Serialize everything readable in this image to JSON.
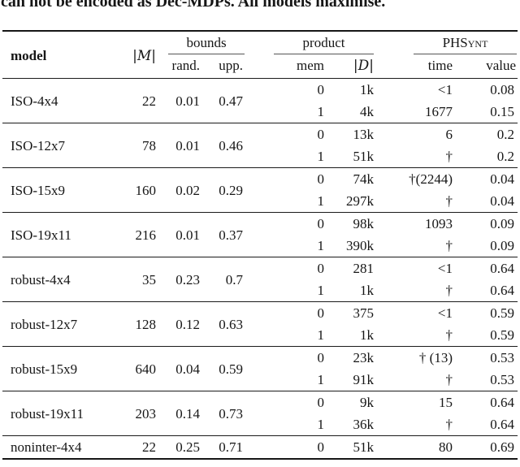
{
  "caption": "can not be encoded as Dec-MDPs. All models maximise.",
  "header": {
    "model": "model",
    "m": "|M|",
    "groups": [
      {
        "label": "bounds",
        "sub": [
          "rand.",
          "upp."
        ]
      },
      {
        "label": "product",
        "sub": [
          "mem",
          "|D|"
        ]
      },
      {
        "label": "PHSynt",
        "sub": [
          "time",
          "value"
        ]
      }
    ]
  },
  "rows": [
    {
      "model": "ISO-4x4",
      "m": "22",
      "rand": "0.01",
      "upp": "0.47",
      "lines": [
        [
          "0",
          "1k",
          "<1",
          "0.08"
        ],
        [
          "1",
          "4k",
          "1677",
          "0.15"
        ]
      ]
    },
    {
      "model": "ISO-12x7",
      "m": "78",
      "rand": "0.01",
      "upp": "0.46",
      "lines": [
        [
          "0",
          "13k",
          "6",
          "0.2"
        ],
        [
          "1",
          "51k",
          "†",
          "0.2"
        ]
      ]
    },
    {
      "model": "ISO-15x9",
      "m": "160",
      "rand": "0.02",
      "upp": "0.29",
      "lines": [
        [
          "0",
          "74k",
          "†(2244)",
          "0.04"
        ],
        [
          "1",
          "297k",
          "†",
          "0.04"
        ]
      ]
    },
    {
      "model": "ISO-19x11",
      "m": "216",
      "rand": "0.01",
      "upp": "0.37",
      "lines": [
        [
          "0",
          "98k",
          "1093",
          "0.09"
        ],
        [
          "1",
          "390k",
          "†",
          "0.09"
        ]
      ]
    },
    {
      "model": "robust-4x4",
      "m": "35",
      "rand": "0.23",
      "upp": "0.7",
      "lines": [
        [
          "0",
          "281",
          "<1",
          "0.64"
        ],
        [
          "1",
          "1k",
          "†",
          "0.64"
        ]
      ]
    },
    {
      "model": "robust-12x7",
      "m": "128",
      "rand": "0.12",
      "upp": "0.63",
      "lines": [
        [
          "0",
          "375",
          "<1",
          "0.59"
        ],
        [
          "1",
          "1k",
          "†",
          "0.59"
        ]
      ]
    },
    {
      "model": "robust-15x9",
      "m": "640",
      "rand": "0.04",
      "upp": "0.59",
      "lines": [
        [
          "0",
          "23k",
          "† (13)",
          "0.53"
        ],
        [
          "1",
          "91k",
          "†",
          "0.53"
        ]
      ]
    },
    {
      "model": "robust-19x11",
      "m": "203",
      "rand": "0.14",
      "upp": "0.73",
      "lines": [
        [
          "0",
          "9k",
          "15",
          "0.64"
        ],
        [
          "1",
          "36k",
          "†",
          "0.64"
        ]
      ]
    },
    {
      "model": "noninter-4x4",
      "m": "22",
      "rand": "0.25",
      "upp": "0.71",
      "lines": [
        [
          "0",
          "51k",
          "80",
          "0.69"
        ]
      ]
    }
  ]
}
